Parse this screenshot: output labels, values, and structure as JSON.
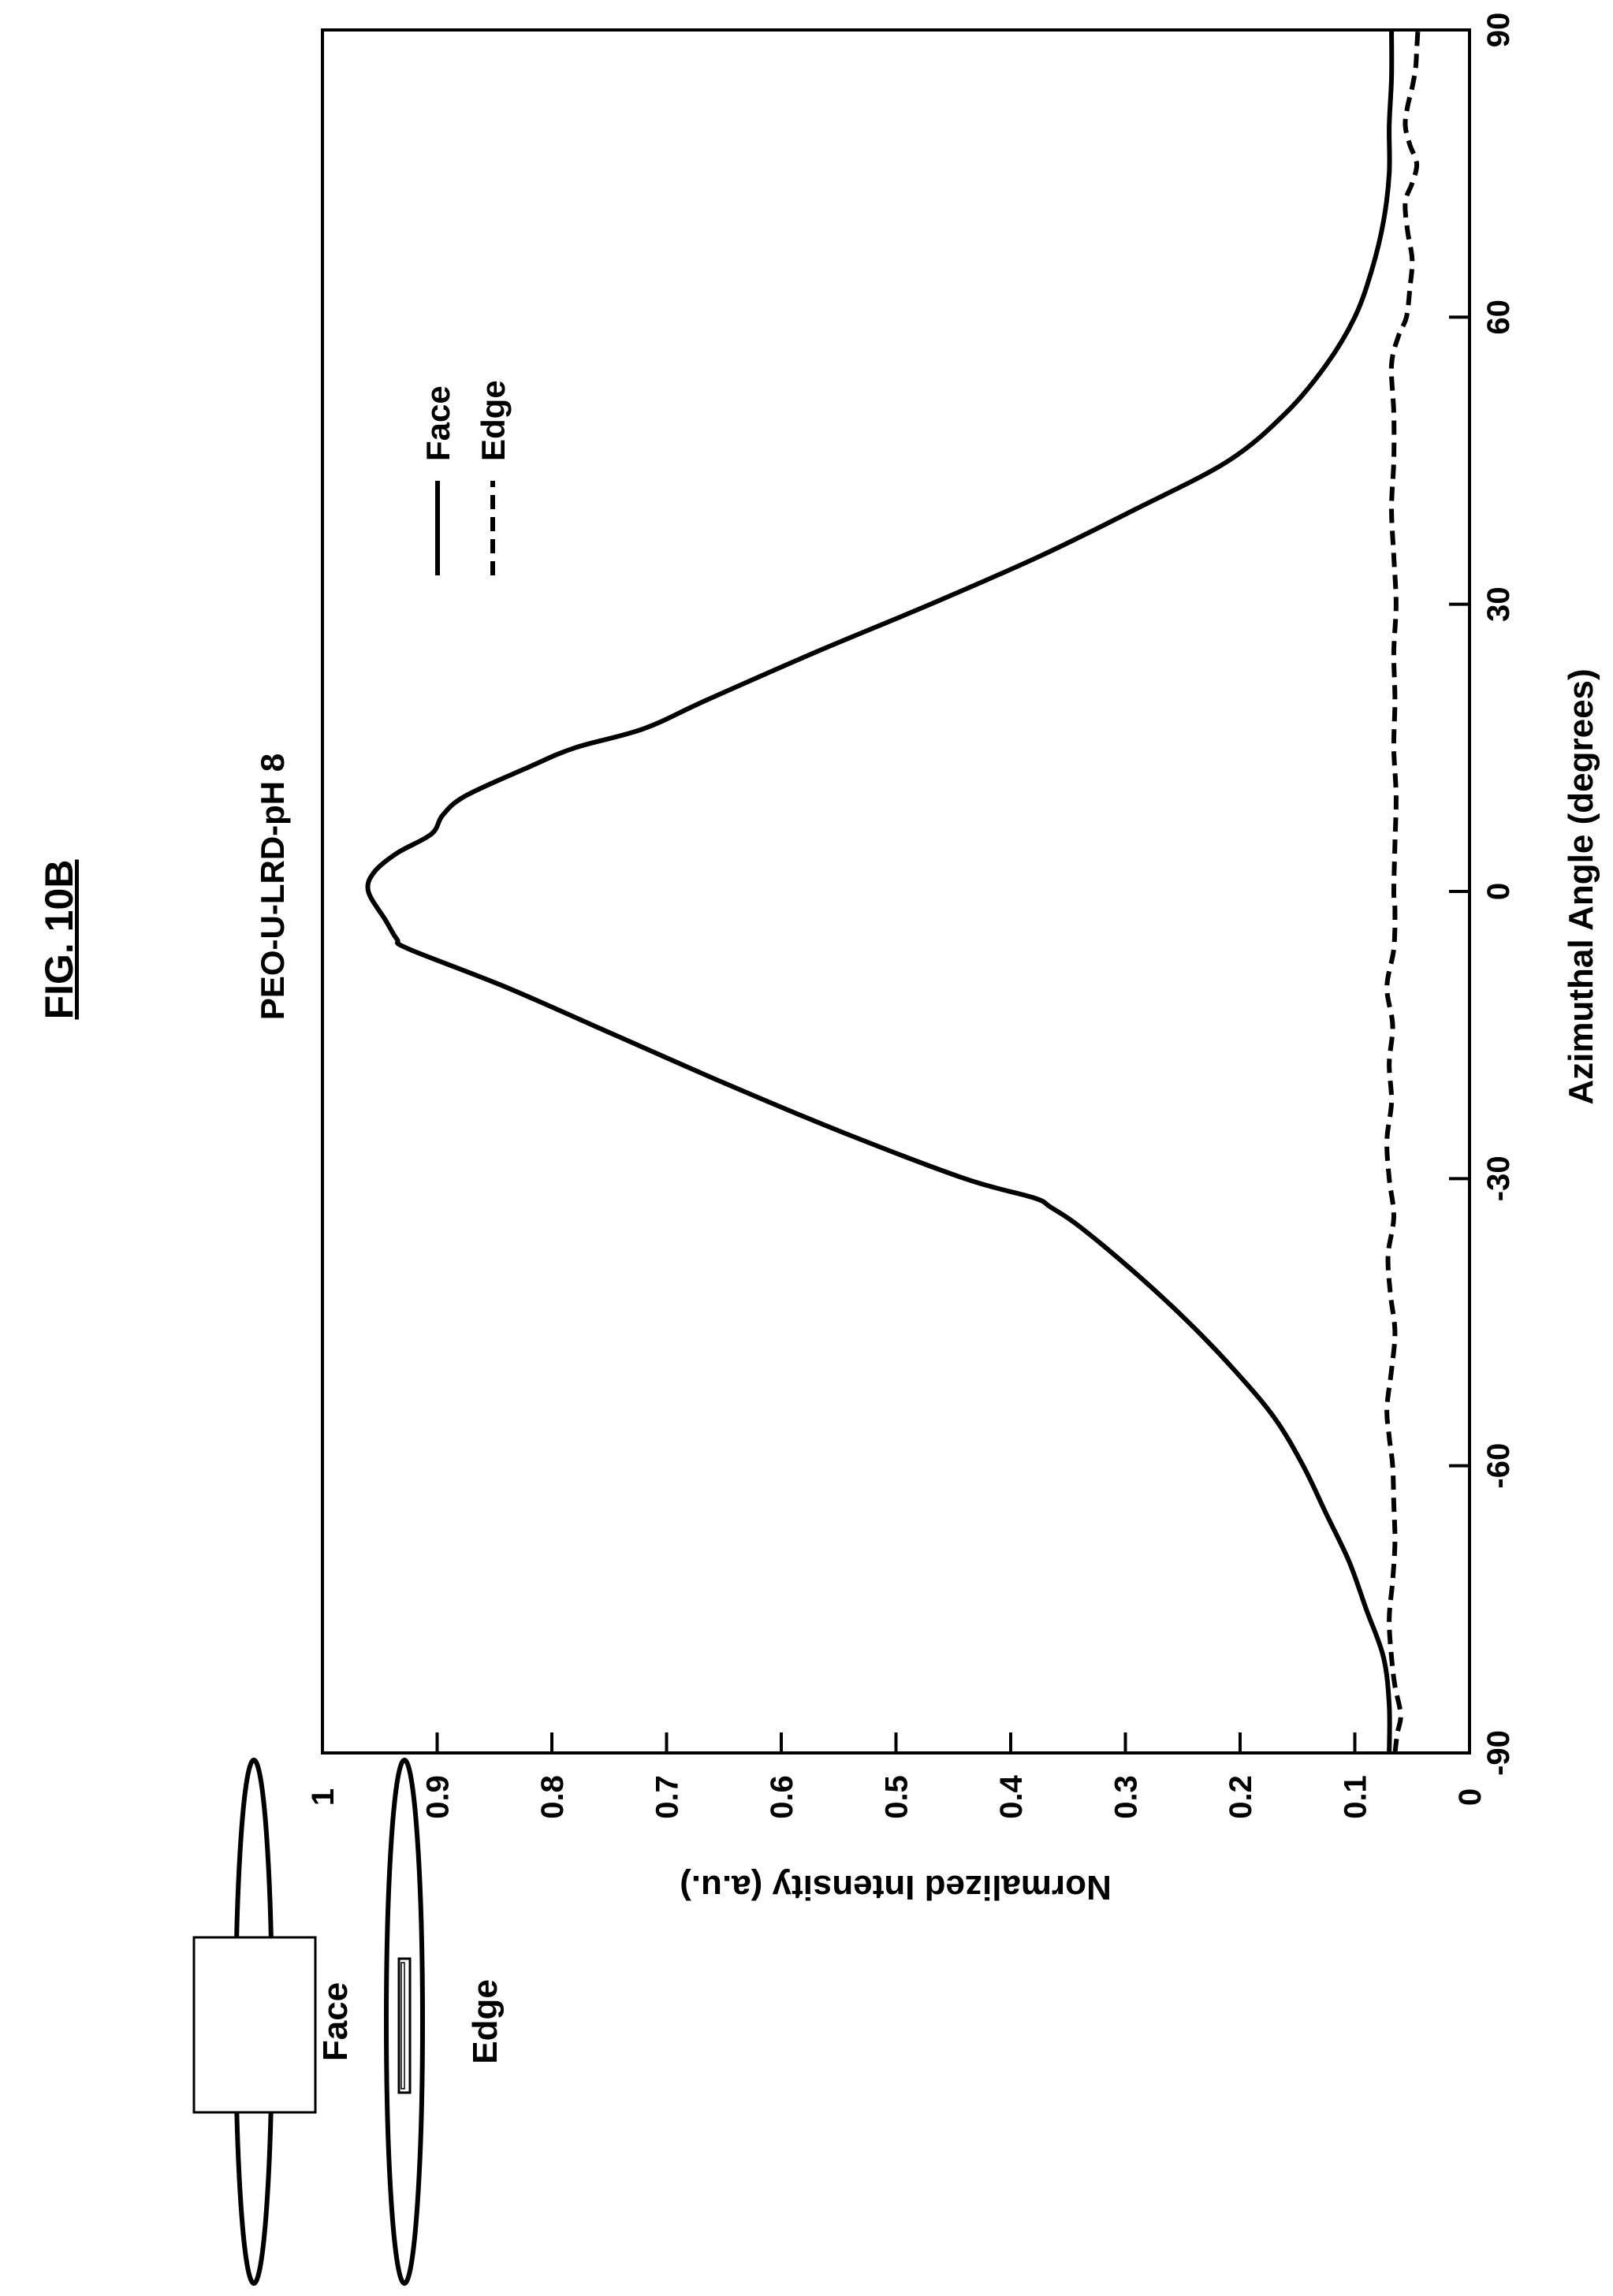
{
  "figure": {
    "title": "FIG. 10B"
  },
  "inset": {
    "face_label": "Face",
    "edge_label": "Edge"
  },
  "chart_data": {
    "type": "line",
    "title": "PEO-U-LRD-pH 8",
    "xlabel": "Azimuthal Angle (degrees)",
    "ylabel": "Normalized Intensity (a.u.)",
    "xlim": [
      -90,
      90
    ],
    "ylim": [
      0,
      1
    ],
    "xticks": [
      "-90",
      "-60",
      "-30",
      "0",
      "30",
      "60",
      "90"
    ],
    "yticks": [
      "0",
      "0.1",
      "0.2",
      "0.3",
      "0.4",
      "0.5",
      "0.6",
      "0.7",
      "0.8",
      "0.9",
      "1"
    ],
    "grid": false,
    "legend_position": "top-right",
    "series": [
      {
        "name": "Face",
        "style": "solid",
        "color": "#000000",
        "points": [
          [
            -90,
            0.07
          ],
          [
            -85,
            0.07
          ],
          [
            -80,
            0.075
          ],
          [
            -75,
            0.09
          ],
          [
            -70,
            0.105
          ],
          [
            -65,
            0.125
          ],
          [
            -60,
            0.145
          ],
          [
            -55,
            0.17
          ],
          [
            -50,
            0.205
          ],
          [
            -45,
            0.245
          ],
          [
            -40,
            0.29
          ],
          [
            -35,
            0.34
          ],
          [
            -33,
            0.365
          ],
          [
            -32,
            0.38
          ],
          [
            -30,
            0.44
          ],
          [
            -25,
            0.55
          ],
          [
            -20,
            0.65
          ],
          [
            -15,
            0.745
          ],
          [
            -10,
            0.84
          ],
          [
            -6,
            0.925
          ],
          [
            -5,
            0.935
          ],
          [
            -3,
            0.945
          ],
          [
            0,
            0.96
          ],
          [
            2,
            0.955
          ],
          [
            4,
            0.935
          ],
          [
            6,
            0.905
          ],
          [
            8,
            0.895
          ],
          [
            10,
            0.875
          ],
          [
            13,
            0.82
          ],
          [
            15,
            0.78
          ],
          [
            17,
            0.72
          ],
          [
            20,
            0.665
          ],
          [
            25,
            0.57
          ],
          [
            30,
            0.47
          ],
          [
            35,
            0.375
          ],
          [
            40,
            0.29
          ],
          [
            45,
            0.21
          ],
          [
            50,
            0.16
          ],
          [
            55,
            0.125
          ],
          [
            60,
            0.1
          ],
          [
            65,
            0.085
          ],
          [
            70,
            0.075
          ],
          [
            75,
            0.07
          ],
          [
            80,
            0.07
          ],
          [
            85,
            0.068
          ],
          [
            90,
            0.068
          ]
        ]
      },
      {
        "name": "Edge",
        "style": "dashed",
        "color": "#000000",
        "points": [
          [
            -90,
            0.065
          ],
          [
            -88,
            0.063
          ],
          [
            -86,
            0.06
          ],
          [
            -83,
            0.065
          ],
          [
            -80,
            0.068
          ],
          [
            -76,
            0.07
          ],
          [
            -72,
            0.067
          ],
          [
            -68,
            0.065
          ],
          [
            -64,
            0.066
          ],
          [
            -60,
            0.067
          ],
          [
            -57,
            0.07
          ],
          [
            -54,
            0.072
          ],
          [
            -50,
            0.068
          ],
          [
            -46,
            0.065
          ],
          [
            -42,
            0.069
          ],
          [
            -38,
            0.071
          ],
          [
            -34,
            0.066
          ],
          [
            -30,
            0.07
          ],
          [
            -26,
            0.072
          ],
          [
            -22,
            0.068
          ],
          [
            -18,
            0.07
          ],
          [
            -14,
            0.067
          ],
          [
            -10,
            0.072
          ],
          [
            -6,
            0.066
          ],
          [
            -2,
            0.065
          ],
          [
            0,
            0.066
          ],
          [
            5,
            0.065
          ],
          [
            10,
            0.064
          ],
          [
            15,
            0.066
          ],
          [
            20,
            0.065
          ],
          [
            25,
            0.066
          ],
          [
            30,
            0.064
          ],
          [
            35,
            0.066
          ],
          [
            40,
            0.068
          ],
          [
            45,
            0.066
          ],
          [
            50,
            0.066
          ],
          [
            55,
            0.068
          ],
          [
            58,
            0.062
          ],
          [
            60,
            0.055
          ],
          [
            63,
            0.052
          ],
          [
            66,
            0.05
          ],
          [
            69,
            0.054
          ],
          [
            72,
            0.056
          ],
          [
            74,
            0.05
          ],
          [
            76,
            0.046
          ],
          [
            78,
            0.052
          ],
          [
            80,
            0.056
          ],
          [
            82,
            0.054
          ],
          [
            84,
            0.05
          ],
          [
            86,
            0.047
          ],
          [
            88,
            0.046
          ],
          [
            90,
            0.045
          ]
        ]
      }
    ]
  }
}
